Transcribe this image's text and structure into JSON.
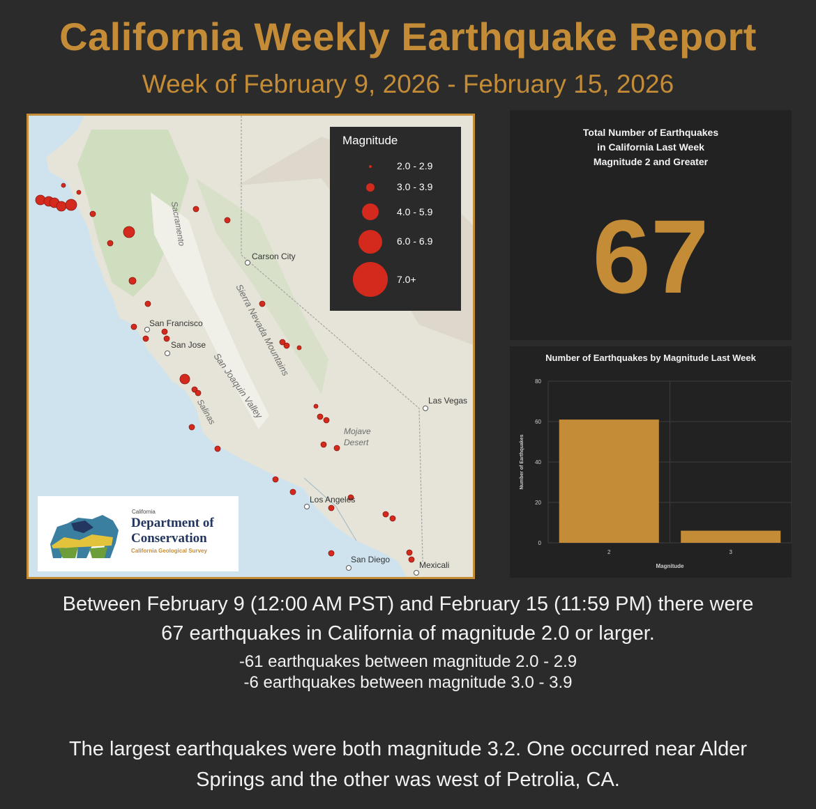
{
  "header": {
    "title": "California Weekly Earthquake Report",
    "subtitle": "Week of February 9, 2026 - February 15, 2026"
  },
  "colors": {
    "accent": "#c48c36",
    "background": "#2b2b2b",
    "panel": "#222222",
    "quake": "#d42a1e"
  },
  "map": {
    "legend": {
      "title": "Magnitude",
      "items": [
        {
          "label": "2.0 - 2.9"
        },
        {
          "label": "3.0 - 3.9"
        },
        {
          "label": "4.0 - 5.9"
        },
        {
          "label": "6.0 - 6.9"
        },
        {
          "label": "7.0+"
        }
      ]
    },
    "cities": {
      "carson_city": "Carson City",
      "san_francisco": "San Francisco",
      "san_jose": "San Jose",
      "las_vegas": "Las Vegas",
      "los_angeles": "Los Angeles",
      "san_diego": "San Diego",
      "mexicali": "Mexicali"
    },
    "features": {
      "sacramento": "Sacramento",
      "sierra": "Sierra Nevada Mountains",
      "sjv": "San Joaquin Valley",
      "salinas": "Salinas",
      "mojave1": "Mojave",
      "mojave2": "Desert"
    },
    "logo": {
      "state": "California",
      "line1": "Department of",
      "line2": "Conservation",
      "line3": "California Geological Survey"
    }
  },
  "total": {
    "heading_1": "Total Number of Earthquakes",
    "heading_2": "in California Last Week",
    "heading_3": "Magnitude 2 and Greater",
    "count": "67"
  },
  "chart_data": {
    "type": "bar",
    "title": "Number of Earthquakes by Magnitude Last Week",
    "categories": [
      "2",
      "3"
    ],
    "values": [
      61,
      6
    ],
    "xlabel": "Magnitude",
    "ylabel": "Number of Earthquakes",
    "ylim": [
      0,
      80
    ],
    "yticks": [
      0,
      20,
      40,
      60,
      80
    ],
    "grid": true
  },
  "summary": {
    "line1": "Between February 9 (12:00 AM PST) and February 15 (11:59 PM) there were",
    "line2": "67 earthquakes in California of magnitude 2.0 or larger.",
    "line3": "-61 earthquakes between magnitude 2.0 - 2.9",
    "line4": "-6 earthquakes between magnitude 3.0 - 3.9",
    "line5": "The largest earthquakes were both magnitude 3.2. One occurred near Alder",
    "line6": "Springs and the other was west of Petrolia, CA."
  }
}
